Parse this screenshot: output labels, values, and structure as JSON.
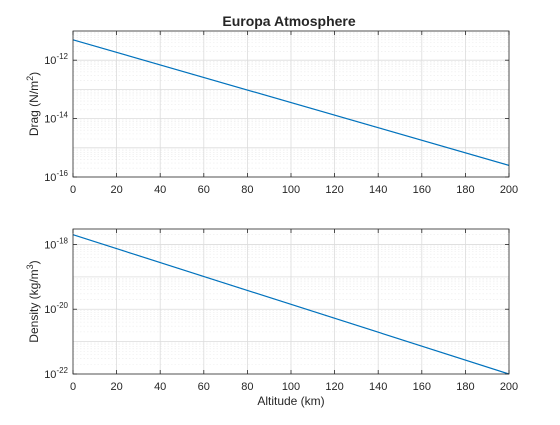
{
  "title": "Europa Atmosphere",
  "colors": {
    "line": "#0072bd",
    "axes": "#262626",
    "grid_major": "#dcdcdc",
    "grid_minor": "#ececec",
    "background": "#ffffff"
  },
  "chart_data": [
    {
      "type": "line",
      "title": "Europa Atmosphere",
      "xlabel": "",
      "ylabel": "Drag (N/m²)",
      "ylabel_parts": {
        "main": "Drag (N/m",
        "sup": "2",
        "tail": ")"
      },
      "x": [
        0,
        200
      ],
      "y": [
        5e-12,
        2.5e-16
      ],
      "xlim": [
        0,
        200
      ],
      "ylim": [
        1e-16,
        1e-11
      ],
      "yscale": "log",
      "xticks": [
        0,
        20,
        40,
        60,
        80,
        100,
        120,
        140,
        160,
        180,
        200
      ],
      "xtick_labels": [
        "0",
        "20",
        "40",
        "60",
        "80",
        "100",
        "120",
        "140",
        "160",
        "180",
        "200"
      ],
      "yticks": [
        {
          "value": 1e-12,
          "base": "10",
          "exp": "-12"
        },
        {
          "value": 1e-14,
          "base": "10",
          "exp": "-14"
        },
        {
          "value": 1e-16,
          "base": "10",
          "exp": "-16"
        }
      ],
      "grid": true
    },
    {
      "type": "line",
      "title": "",
      "xlabel": "Altitude (km)",
      "ylabel": "Density (kg/m³)",
      "ylabel_parts": {
        "main": "Density (kg/m",
        "sup": "3",
        "tail": ")"
      },
      "x": [
        0,
        200
      ],
      "y": [
        2e-18,
        1e-22
      ],
      "xlim": [
        0,
        200
      ],
      "ylim": [
        1e-22,
        3e-18
      ],
      "yscale": "log",
      "xticks": [
        0,
        20,
        40,
        60,
        80,
        100,
        120,
        140,
        160,
        180,
        200
      ],
      "xtick_labels": [
        "0",
        "20",
        "40",
        "60",
        "80",
        "100",
        "120",
        "140",
        "160",
        "180",
        "200"
      ],
      "yticks": [
        {
          "value": 1e-18,
          "base": "10",
          "exp": "-18"
        },
        {
          "value": 1e-20,
          "base": "10",
          "exp": "-20"
        },
        {
          "value": 1e-22,
          "base": "10",
          "exp": "-22"
        }
      ],
      "grid": true
    }
  ]
}
